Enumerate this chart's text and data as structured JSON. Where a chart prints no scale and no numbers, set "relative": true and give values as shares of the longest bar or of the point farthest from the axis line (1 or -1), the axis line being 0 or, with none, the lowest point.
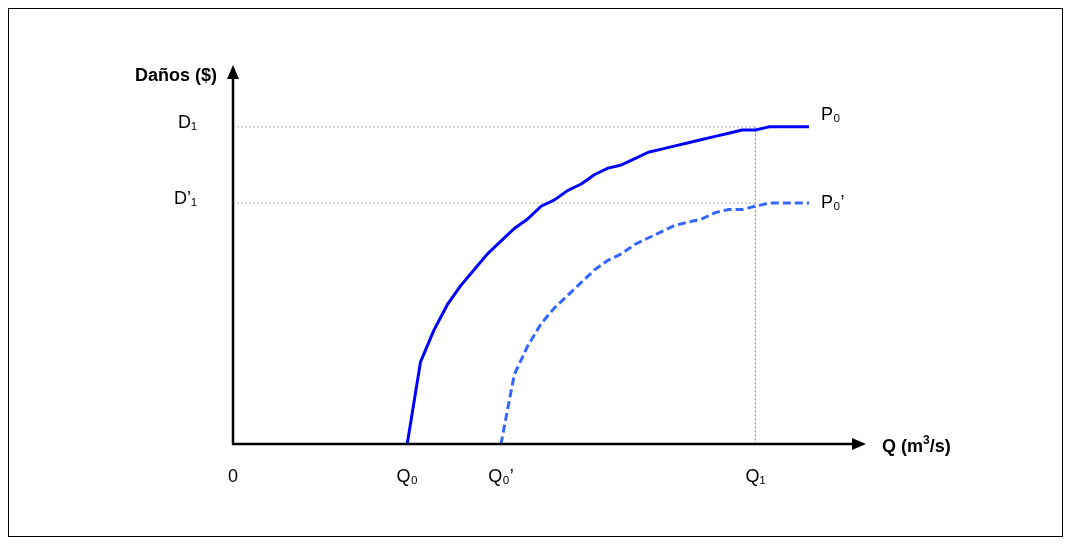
{
  "chart_data": {
    "type": "line",
    "relative": true,
    "xlabel": "Q (m$^{3}$/s)",
    "ylabel": "Daños ($)",
    "categories": [
      "0",
      null,
      null,
      null,
      null,
      null,
      null,
      null,
      null,
      null,
      null,
      null,
      null,
      "Q₀",
      null,
      null,
      null,
      null,
      null,
      null,
      "Q₀’",
      null,
      null,
      null,
      null,
      null,
      null,
      null,
      null,
      null,
      null,
      null,
      null,
      null,
      null,
      null,
      null,
      null,
      null,
      "Q₁",
      null,
      null,
      null,
      null
    ],
    "series": [
      {
        "name": "P₀",
        "color": "#0000ff",
        "line_style": "solid",
        "values": [
          null,
          null,
          null,
          null,
          null,
          null,
          null,
          null,
          null,
          null,
          null,
          null,
          null,
          0,
          0.26,
          0.36,
          0.44,
          0.5,
          0.55,
          0.6,
          0.64,
          0.68,
          0.71,
          0.75,
          0.77,
          0.8,
          0.82,
          0.85,
          0.87,
          0.88,
          0.9,
          0.92,
          0.93,
          0.94,
          0.95,
          0.96,
          0.97,
          0.98,
          0.99,
          0.99,
          1,
          1,
          1,
          1
        ]
      },
      {
        "name": "P₀’",
        "color": "#3366ff",
        "line_style": "dashed",
        "values": [
          null,
          null,
          null,
          null,
          null,
          null,
          null,
          null,
          null,
          null,
          null,
          null,
          null,
          null,
          null,
          null,
          null,
          null,
          null,
          null,
          0,
          0.22,
          0.31,
          0.38,
          0.43,
          0.47,
          0.51,
          0.55,
          0.58,
          0.6,
          0.63,
          0.65,
          0.67,
          0.69,
          0.7,
          0.71,
          0.73,
          0.74,
          0.74,
          0.75,
          0.76,
          0.76,
          0.76,
          0.76
        ]
      }
    ],
    "ref_lines": [
      {
        "axis": "y",
        "value": 1,
        "label": "D₁",
        "line_style": "dotted",
        "color": "#aaaaaa"
      },
      {
        "axis": "y",
        "value": 0.76,
        "label": "D’₁",
        "line_style": "dotted",
        "color": "#aaaaaa"
      },
      {
        "axis": "x",
        "value": "Q₁",
        "line_style": "dotted",
        "color": "#777777"
      }
    ],
    "legend": false,
    "marker": "none"
  }
}
